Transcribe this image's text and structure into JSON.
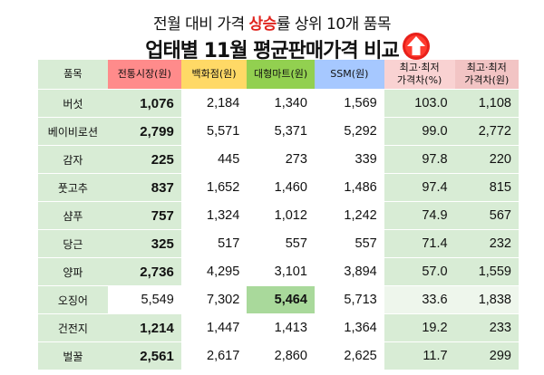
{
  "subtitle": {
    "before": "전월 대비 가격 ",
    "highlight": "상승",
    "after": "률 상위 10개 품목"
  },
  "title": "업태별 11월 평균판매가격 비교",
  "icon": "up-arrow-icon",
  "colors": {
    "highlight": "#e0231d",
    "mkt_header": "#ff8b8b",
    "dept_header": "#ffd966",
    "mart_header": "#92d050",
    "ssm_header": "#a6c8ff",
    "row_green": "#d8ecd5"
  },
  "headers": {
    "name": "품목",
    "mkt": "전통시장(원)",
    "dept": "백화점(원)",
    "mart": "대형마트(원)",
    "ssm": "SSM(원)",
    "diff_pct": "최고·최저\n가격차(%)",
    "diff_amt": "최고·최저\n가격차(원)"
  },
  "rows": [
    {
      "name": "버섯",
      "mkt": "1,076",
      "dept": "2,184",
      "mart": "1,340",
      "ssm": "1,569",
      "pct": "103.0",
      "amt": "1,108"
    },
    {
      "name": "베이비로션",
      "mkt": "2,799",
      "dept": "5,571",
      "mart": "5,371",
      "ssm": "5,292",
      "pct": "99.0",
      "amt": "2,772"
    },
    {
      "name": "감자",
      "mkt": "225",
      "dept": "445",
      "mart": "273",
      "ssm": "339",
      "pct": "97.8",
      "amt": "220"
    },
    {
      "name": "풋고추",
      "mkt": "837",
      "dept": "1,652",
      "mart": "1,460",
      "ssm": "1,486",
      "pct": "97.4",
      "amt": "815"
    },
    {
      "name": "샴푸",
      "mkt": "757",
      "dept": "1,324",
      "mart": "1,012",
      "ssm": "1,242",
      "pct": "74.9",
      "amt": "567"
    },
    {
      "name": "당근",
      "mkt": "325",
      "dept": "517",
      "mart": "557",
      "ssm": "557",
      "pct": "71.4",
      "amt": "232"
    },
    {
      "name": "양파",
      "mkt": "2,736",
      "dept": "4,295",
      "mart": "3,101",
      "ssm": "3,894",
      "pct": "57.0",
      "amt": "1,559"
    },
    {
      "name": "오징어",
      "mkt": "5,549",
      "dept": "7,302",
      "mart": "5,464",
      "ssm": "5,713",
      "pct": "33.6",
      "amt": "1,838"
    },
    {
      "name": "건전지",
      "mkt": "1,214",
      "dept": "1,447",
      "mart": "1,413",
      "ssm": "1,364",
      "pct": "19.2",
      "amt": "233"
    },
    {
      "name": "벌꿀",
      "mkt": "2,561",
      "dept": "2,617",
      "mart": "2,860",
      "ssm": "2,625",
      "pct": "11.7",
      "amt": "299"
    }
  ]
}
